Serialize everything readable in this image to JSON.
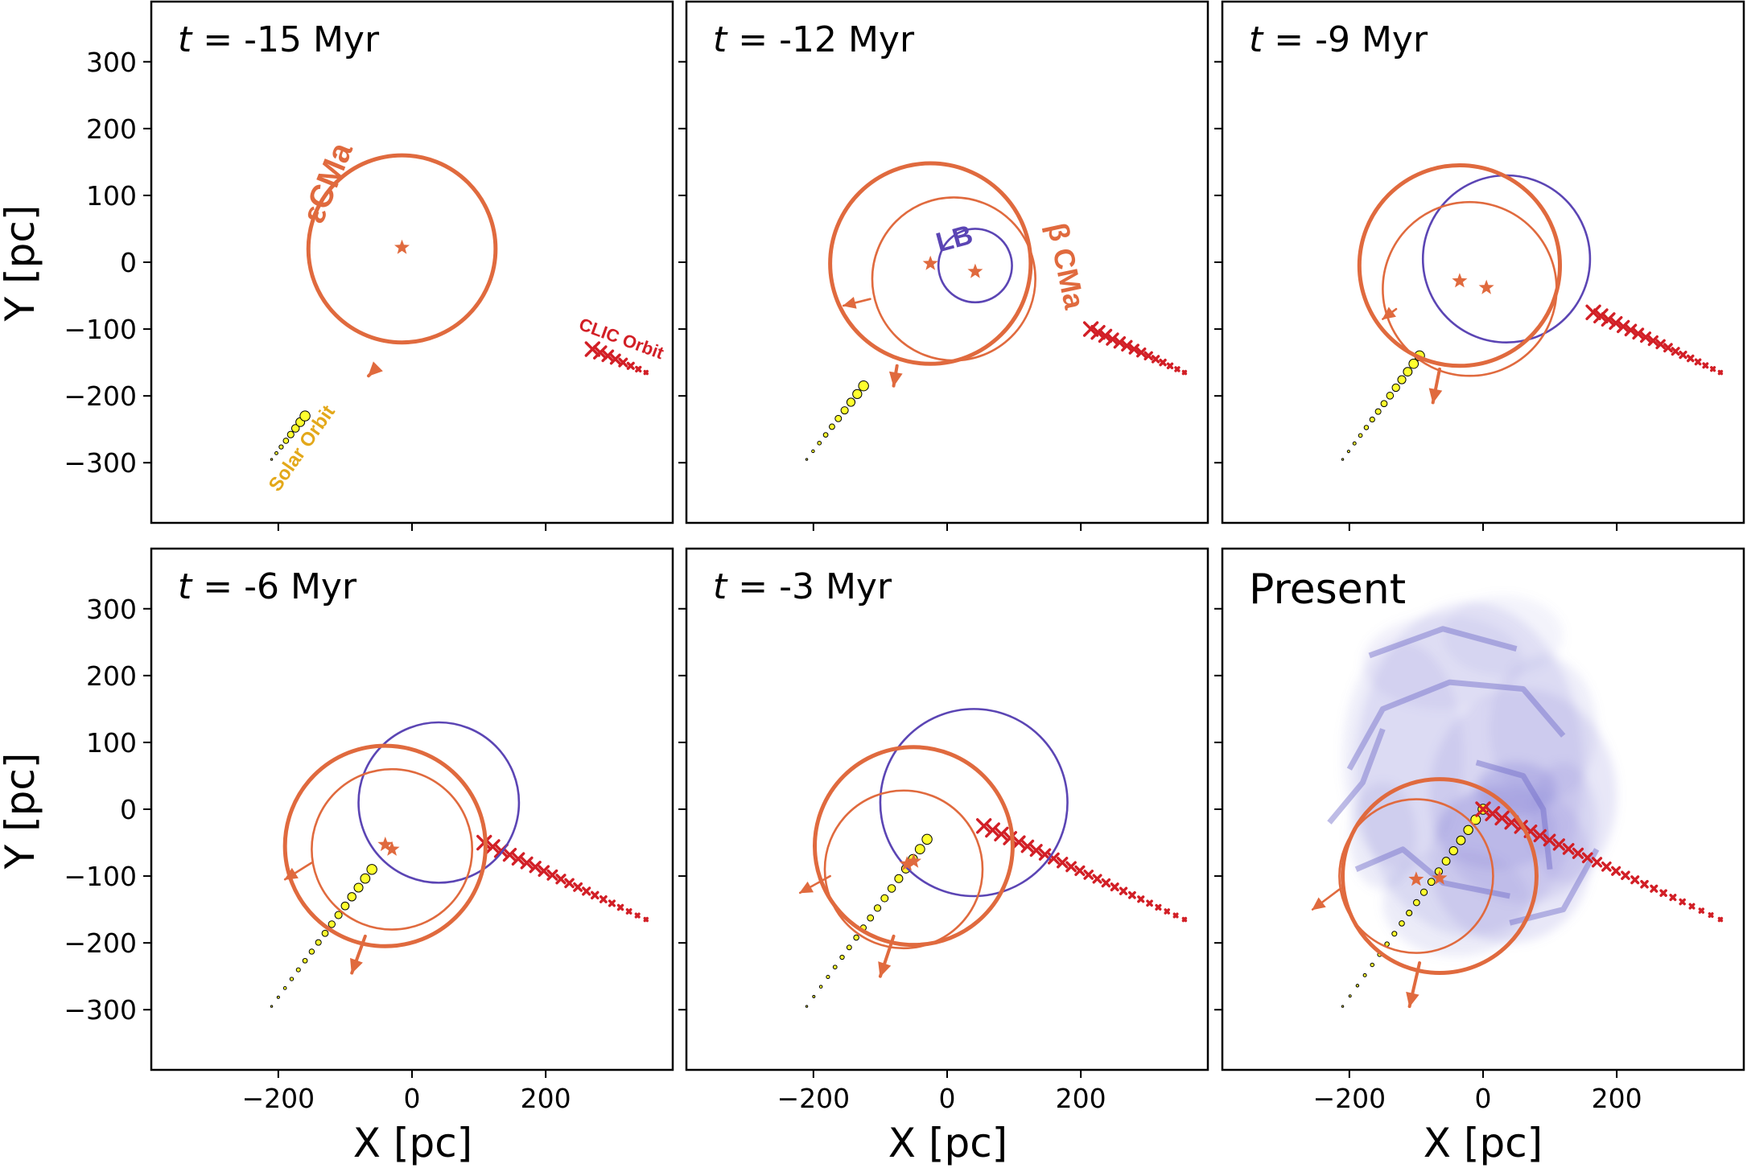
{
  "figure": {
    "x_label": "X [pc]",
    "y_label": "Y [pc]"
  },
  "chart_data": {
    "type": "scatter",
    "panel_grid": [
      2,
      3
    ],
    "xlim": [
      -390,
      390
    ],
    "ylim": [
      -390,
      390
    ],
    "xticks": [
      -200,
      0,
      200
    ],
    "yticks": [
      -300,
      -200,
      -100,
      0,
      100,
      200,
      300
    ],
    "xlabel": "X [pc]",
    "ylabel": "Y [pc]",
    "colors": {
      "cma": "#e06a3e",
      "lb": "#5b45b4",
      "clic": "#d21f26",
      "solar_fill": "#ffff2e",
      "solar_label": "#e3a81a",
      "cloud": "#8a86d6"
    },
    "annotations": {
      "eps_cma": "εCMa",
      "beta_cma": "β CMa",
      "lb": "LB",
      "clic_orbit": "CLIC Orbit",
      "solar_orbit": "Solar Orbit"
    },
    "panels": [
      {
        "title_prefix": "t",
        "title_rest": " = -15 Myr",
        "eps_cma": {
          "center": [
            -15,
            20
          ],
          "radius": 140,
          "star": [
            -15,
            22
          ],
          "arrow": [
            -55,
            -160,
            -65,
            -170
          ]
        },
        "beta_cma": null,
        "lb": null,
        "clic": {
          "start": [
            270,
            -130
          ],
          "end": [
            350,
            -165
          ],
          "n": 8
        },
        "solar": {
          "start": [
            -210,
            -295
          ],
          "end": [
            -160,
            -230
          ],
          "n": 8
        }
      },
      {
        "title_prefix": "t",
        "title_rest": " = -12 Myr",
        "eps_cma": {
          "center": [
            -25,
            -2
          ],
          "radius": 150,
          "star": [
            -25,
            -2
          ],
          "arrow": [
            -75,
            -155,
            -80,
            -185
          ]
        },
        "beta_cma": {
          "center": [
            10,
            -25
          ],
          "radius": 122,
          "star": [
            42,
            -14
          ],
          "arrow": [
            -115,
            -55,
            -155,
            -65
          ]
        },
        "lb": {
          "center": [
            42,
            -5
          ],
          "radius": 55
        },
        "clic": {
          "start": [
            215,
            -100
          ],
          "end": [
            355,
            -165
          ],
          "n": 14
        },
        "solar": {
          "start": [
            -210,
            -295
          ],
          "end": [
            -125,
            -185
          ],
          "n": 10
        }
      },
      {
        "title_prefix": "t",
        "title_rest": " = -9 Myr",
        "eps_cma": {
          "center": [
            -35,
            -5
          ],
          "radius": 150,
          "star": [
            -35,
            -28
          ],
          "arrow": [
            -65,
            -160,
            -75,
            -210
          ]
        },
        "beta_cma": {
          "center": [
            -20,
            -40
          ],
          "radius": 130,
          "star": [
            5,
            -38
          ],
          "arrow": [
            -130,
            -70,
            -150,
            -85
          ]
        },
        "lb": {
          "center": [
            35,
            5
          ],
          "radius": 125
        },
        "clic": {
          "start": [
            165,
            -75
          ],
          "end": [
            355,
            -165
          ],
          "n": 18
        },
        "solar": {
          "start": [
            -210,
            -295
          ],
          "end": [
            -95,
            -140
          ],
          "n": 14
        }
      },
      {
        "title_prefix": "t",
        "title_rest": " = -6 Myr",
        "eps_cma": {
          "center": [
            -40,
            -55
          ],
          "radius": 150,
          "star": [
            -40,
            -53
          ],
          "arrow": [
            -70,
            -190,
            -90,
            -245
          ]
        },
        "beta_cma": {
          "center": [
            -30,
            -60
          ],
          "radius": 120,
          "star": [
            -30,
            -60
          ],
          "arrow": [
            -150,
            -80,
            -190,
            -105
          ]
        },
        "lb": {
          "center": [
            40,
            10
          ],
          "radius": 120
        },
        "clic": {
          "start": [
            108,
            -50
          ],
          "end": [
            350,
            -165
          ],
          "n": 20
        },
        "solar": {
          "start": [
            -210,
            -295
          ],
          "end": [
            -60,
            -90
          ],
          "n": 16
        }
      },
      {
        "title_prefix": "t",
        "title_rest": " = -3 Myr",
        "eps_cma": {
          "center": [
            -50,
            -55
          ],
          "radius": 148,
          "star": [
            -50,
            -78
          ],
          "arrow": [
            -80,
            -190,
            -100,
            -250
          ]
        },
        "beta_cma": {
          "center": [
            -65,
            -90
          ],
          "radius": 118,
          "star": [
            -60,
            -82
          ],
          "arrow": [
            -175,
            -100,
            -220,
            -125
          ]
        },
        "lb": {
          "center": [
            40,
            10
          ],
          "radius": 140
        },
        "clic": {
          "start": [
            55,
            -25
          ],
          "end": [
            355,
            -165
          ],
          "n": 24
        },
        "solar": {
          "start": [
            -210,
            -295
          ],
          "end": [
            -30,
            -45
          ],
          "n": 18
        }
      },
      {
        "title_prefix": "",
        "title_rest": "Present",
        "eps_cma": {
          "center": [
            -65,
            -100
          ],
          "radius": 145,
          "star": [
            -65,
            -103
          ],
          "arrow": [
            -95,
            -230,
            -110,
            -295
          ]
        },
        "beta_cma": {
          "center": [
            -100,
            -100
          ],
          "radius": 115,
          "star": [
            -100,
            -105
          ],
          "arrow": [
            -215,
            -120,
            -255,
            -150
          ]
        },
        "lb": null,
        "clic": {
          "start": [
            0,
            0
          ],
          "end": [
            355,
            -165
          ],
          "n": 26
        },
        "solar": {
          "start": [
            -210,
            -295
          ],
          "end": [
            0,
            0
          ],
          "n": 20
        },
        "cloud": true
      }
    ]
  }
}
